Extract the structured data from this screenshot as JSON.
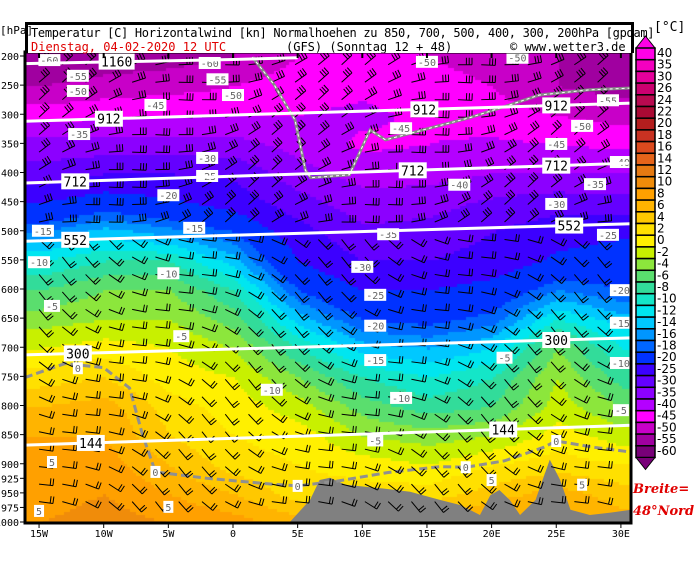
{
  "header": {
    "title": "Temperatur [C] Horizontalwind [kn] Normalhoehen zu 850, 700, 500, 400, 300, 200hPa [gpdam]",
    "date": "Dienstag, 04-02-2020   12 UTC",
    "model": "(GFS)  (Sonntag 12 + 48)",
    "copyright": "© www.wetter3.de"
  },
  "y_unit": "[hPa]",
  "colorbar_unit": "[°C]",
  "latitude_note": [
    "Breite=",
    "48°Nord"
  ],
  "chart_data": {
    "type": "heatmap",
    "subtype": "vertical cross-section",
    "xlabel": "",
    "ylabel": "[hPa]",
    "xlim": [
      -16.1,
      30.8
    ],
    "ylim": [
      1000,
      195
    ],
    "x_ticks": [
      {
        "v": -15,
        "label": "15W"
      },
      {
        "v": -10,
        "label": "10W"
      },
      {
        "v": -5,
        "label": "5W"
      },
      {
        "v": 0,
        "label": "0"
      },
      {
        "v": 5,
        "label": "5E"
      },
      {
        "v": 10,
        "label": "10E"
      },
      {
        "v": 15,
        "label": "15E"
      },
      {
        "v": 20,
        "label": "20E"
      },
      {
        "v": 25,
        "label": "25E"
      },
      {
        "v": 30,
        "label": "30E"
      }
    ],
    "y_ticks": [
      200,
      250,
      300,
      350,
      400,
      450,
      500,
      550,
      600,
      650,
      700,
      750,
      800,
      850,
      900,
      925,
      950,
      975,
      1000
    ],
    "colorbar": {
      "levels": [
        40,
        35,
        30,
        26,
        24,
        22,
        20,
        18,
        16,
        14,
        12,
        10,
        8,
        6,
        4,
        2,
        0,
        -2,
        -4,
        -6,
        -8,
        -10,
        -12,
        -14,
        -16,
        -18,
        -20,
        -25,
        -30,
        -35,
        -40,
        -45,
        -50,
        -55,
        -60
      ],
      "colors": [
        "#ff00e6",
        "#f400c0",
        "#e6009c",
        "#cc0070",
        "#b80a50",
        "#aa0a34",
        "#b41e1e",
        "#c83222",
        "#dc4a1e",
        "#e6641a",
        "#e67a12",
        "#f08c0a",
        "#ffa000",
        "#ffb400",
        "#ffc800",
        "#ffe000",
        "#fff000",
        "#c8f000",
        "#8ce63c",
        "#5ade6e",
        "#32dc9a",
        "#14e6c8",
        "#00e6f0",
        "#00c8ff",
        "#0096ff",
        "#0066ff",
        "#0032ff",
        "#3c00ff",
        "#6400ff",
        "#8c00ff",
        "#b400ff",
        "#ff00ff",
        "#c800c8",
        "#a000a0",
        "#780078"
      ]
    },
    "temperature_grid": {
      "lon": [
        -15,
        -10,
        -5,
        0,
        5,
        10,
        15,
        20,
        25,
        30
      ],
      "pressure": [
        200,
        250,
        300,
        350,
        400,
        450,
        500,
        550,
        600,
        650,
        700,
        750,
        800,
        850,
        900,
        950,
        1000
      ],
      "values": [
        [
          -60,
          -58,
          -57,
          -55,
          -50,
          -48,
          -50,
          -52,
          -55,
          -58
        ],
        [
          -55,
          -53,
          -52,
          -50,
          -47,
          -46,
          -48,
          -50,
          -55,
          -57
        ],
        [
          -47,
          -46,
          -45,
          -45,
          -45,
          -44,
          -46,
          -48,
          -50,
          -52
        ],
        [
          -38,
          -38,
          -38,
          -38,
          -42,
          -46,
          -45,
          -44,
          -45,
          -46
        ],
        [
          -33,
          -30,
          -30,
          -31,
          -38,
          -42,
          -42,
          -40,
          -40,
          -40
        ],
        [
          -25,
          -22,
          -24,
          -27,
          -33,
          -38,
          -37,
          -34,
          -32,
          -33
        ],
        [
          -18,
          -15,
          -17,
          -20,
          -28,
          -34,
          -33,
          -30,
          -27,
          -26
        ],
        [
          -12,
          -10,
          -10,
          -15,
          -25,
          -30,
          -30,
          -28,
          -24,
          -22
        ],
        [
          -8,
          -6,
          -6,
          -10,
          -20,
          -25,
          -25,
          -23,
          -18,
          -20
        ],
        [
          -5,
          -4,
          -4,
          -7,
          -15,
          -20,
          -21,
          -19,
          -12,
          -15
        ],
        [
          -2,
          -1,
          -2,
          -4,
          -10,
          -15,
          -16,
          -14,
          -6,
          -12
        ],
        [
          1,
          2,
          -1,
          -2,
          -6,
          -10,
          -12,
          -10,
          -4,
          -9
        ],
        [
          4,
          5,
          1,
          -1,
          -3,
          -7,
          -9,
          -8,
          -3,
          -6
        ],
        [
          6,
          6,
          2,
          0,
          -1,
          -4,
          -5,
          -4,
          -1,
          -3
        ],
        [
          6,
          7,
          4,
          1,
          0,
          -1,
          -2,
          0,
          1,
          0
        ],
        [
          7,
          8,
          6,
          4,
          1,
          1,
          1,
          3,
          5,
          3
        ],
        [
          8,
          9,
          8,
          7,
          5,
          5,
          5,
          7,
          7,
          5
        ]
      ]
    },
    "isotherm_labels": [
      {
        "t": "-60",
        "lon": -14.2,
        "p": 207
      },
      {
        "t": "-55",
        "lon": -12,
        "p": 234
      },
      {
        "t": "-50",
        "lon": -12,
        "p": 260
      },
      {
        "t": "-45",
        "lon": -6,
        "p": 284
      },
      {
        "t": "-35",
        "lon": -11.9,
        "p": 334
      },
      {
        "t": "-30",
        "lon": -2,
        "p": 375
      },
      {
        "t": "-25",
        "lon": -2,
        "p": 406
      },
      {
        "t": "-20",
        "lon": -5,
        "p": 439
      },
      {
        "t": "-15",
        "lon": -14.7,
        "p": 500
      },
      {
        "t": "-15",
        "lon": -3,
        "p": 495
      },
      {
        "t": "-60",
        "lon": -1.8,
        "p": 212
      },
      {
        "t": "-55",
        "lon": -1.2,
        "p": 240
      },
      {
        "t": "-50",
        "lon": 0,
        "p": 267
      },
      {
        "t": "-45",
        "lon": 13,
        "p": 324
      },
      {
        "t": "-40",
        "lon": 17.5,
        "p": 421
      },
      {
        "t": "-35",
        "lon": 12,
        "p": 506
      },
      {
        "t": "-30",
        "lon": 10,
        "p": 562
      },
      {
        "t": "-25",
        "lon": 11,
        "p": 610
      },
      {
        "t": "-20",
        "lon": 11,
        "p": 663
      },
      {
        "t": "-15",
        "lon": 11,
        "p": 722
      },
      {
        "t": "-10",
        "lon": 13,
        "p": 787
      },
      {
        "t": "-5",
        "lon": 11,
        "p": 860
      },
      {
        "t": "-10",
        "lon": 3,
        "p": 773
      },
      {
        "t": "-5",
        "lon": -4,
        "p": 681
      },
      {
        "t": "-10",
        "lon": -5,
        "p": 573
      },
      {
        "t": "-10",
        "lon": -15,
        "p": 554
      },
      {
        "t": "-5",
        "lon": -14,
        "p": 629
      },
      {
        "t": "-50",
        "lon": 15,
        "p": 210
      },
      {
        "t": "-50",
        "lon": 22,
        "p": 203
      },
      {
        "t": "-55",
        "lon": 29,
        "p": 276
      },
      {
        "t": "-50",
        "lon": 27,
        "p": 320
      },
      {
        "t": "-45",
        "lon": 25,
        "p": 351
      },
      {
        "t": "-40",
        "lon": 30,
        "p": 382
      },
      {
        "t": "-35",
        "lon": 28,
        "p": 420
      },
      {
        "t": "-30",
        "lon": 25,
        "p": 454
      },
      {
        "t": "-25",
        "lon": 29,
        "p": 507
      },
      {
        "t": "-20",
        "lon": 30,
        "p": 602
      },
      {
        "t": "-15",
        "lon": 30,
        "p": 658
      },
      {
        "t": "-10",
        "lon": 30,
        "p": 727
      },
      {
        "t": "-5",
        "lon": 21,
        "p": 718
      },
      {
        "t": "-5",
        "lon": 30,
        "p": 808
      },
      {
        "t": "0",
        "lon": -12,
        "p": 736,
        "zero": true
      },
      {
        "t": "0",
        "lon": -6,
        "p": 914,
        "zero": true
      },
      {
        "t": "0",
        "lon": 5,
        "p": 938,
        "zero": true
      },
      {
        "t": "0",
        "lon": 18,
        "p": 906,
        "zero": true
      },
      {
        "t": "0",
        "lon": 25,
        "p": 861,
        "zero": true
      },
      {
        "t": "5",
        "lon": -14,
        "p": 897
      },
      {
        "t": "5",
        "lon": -15,
        "p": 981
      },
      {
        "t": "5",
        "lon": -5,
        "p": 974
      },
      {
        "t": "5",
        "lon": 20,
        "p": 928
      },
      {
        "t": "5",
        "lon": 27,
        "p": 936
      }
    ],
    "zero_isotherm": [
      [
        -16.1,
        752
      ],
      [
        -13,
        728
      ],
      [
        -10,
        735
      ],
      [
        -8,
        770
      ],
      [
        -7,
        850
      ],
      [
        -6,
        914
      ],
      [
        -2,
        925
      ],
      [
        3,
        935
      ],
      [
        5,
        938
      ],
      [
        8,
        930
      ],
      [
        12,
        915
      ],
      [
        16,
        905
      ],
      [
        18,
        906
      ],
      [
        21,
        895
      ],
      [
        24,
        872
      ],
      [
        25,
        861
      ],
      [
        28,
        872
      ],
      [
        30.8,
        880
      ]
    ],
    "geopotential_lines": [
      {
        "value": "1160",
        "points": [
          [
            -16.1,
            213
          ],
          [
            0,
            206
          ],
          [
            5,
            203
          ]
        ],
        "label_lon": [
          -9
        ]
      },
      {
        "value": "912",
        "points": [
          [
            -16.1,
            312
          ],
          [
            30.8,
            281
          ]
        ],
        "label_lon": [
          -9.6,
          14.8,
          25
        ]
      },
      {
        "value": "712",
        "points": [
          [
            -16.1,
            418
          ],
          [
            30.8,
            384
          ]
        ],
        "label_lon": [
          -12.2,
          13.9,
          25
        ]
      },
      {
        "value": "552",
        "points": [
          [
            -16.1,
            518
          ],
          [
            30.8,
            488
          ]
        ],
        "label_lon": [
          -12.2,
          26
        ]
      },
      {
        "value": "300",
        "points": [
          [
            -16.1,
            713
          ],
          [
            30.8,
            684
          ]
        ],
        "label_lon": [
          -12,
          25
        ]
      },
      {
        "value": "144",
        "points": [
          [
            -16.1,
            868
          ],
          [
            30.8,
            834
          ]
        ],
        "label_lon": [
          -11,
          20.9
        ]
      }
    ],
    "tropopause_line": [
      [
        1.5,
        202
      ],
      [
        3.2,
        250
      ],
      [
        4.8,
        310
      ],
      [
        5.6,
        396
      ],
      [
        6,
        409
      ],
      [
        9,
        404
      ],
      [
        10.6,
        327
      ],
      [
        11.8,
        344
      ],
      [
        15.2,
        324
      ],
      [
        18.3,
        306
      ],
      [
        21.4,
        284
      ],
      [
        23.7,
        267
      ],
      [
        27.6,
        258
      ],
      [
        30.8,
        255
      ]
    ],
    "terrain_surface_pressure": [
      [
        4.4,
        1000
      ],
      [
        5.96,
        962
      ],
      [
        6.7,
        928
      ],
      [
        7.5,
        924
      ],
      [
        8.7,
        936
      ],
      [
        11.4,
        942
      ],
      [
        13.7,
        948
      ],
      [
        16,
        962
      ],
      [
        17.6,
        971
      ],
      [
        19.1,
        988
      ],
      [
        19.9,
        954
      ],
      [
        20.6,
        945
      ],
      [
        21.4,
        962
      ],
      [
        22.2,
        988
      ],
      [
        23.4,
        962
      ],
      [
        24.5,
        893
      ],
      [
        25.3,
        928
      ],
      [
        26.1,
        979
      ],
      [
        27.6,
        988
      ],
      [
        29.2,
        984
      ],
      [
        30.8,
        979
      ]
    ],
    "terrain_color": "#808080",
    "geopotential_color": "#ffffff",
    "isotherm_color": "#909090"
  }
}
